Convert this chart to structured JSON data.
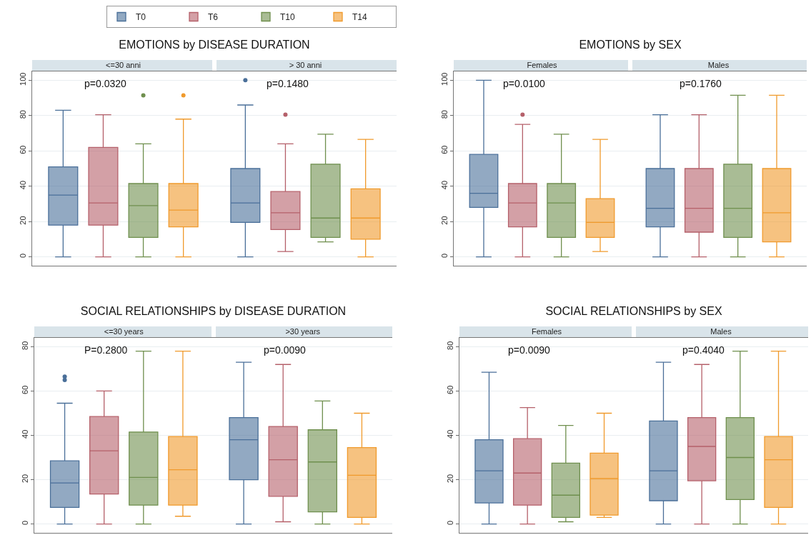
{
  "chart_data": [
    {
      "type": "box",
      "title": "EMOTIONS by DISEASE DURATION",
      "annotations": [
        "p=0.0320",
        "p=0.1480"
      ],
      "categories": [
        "<=30 anni",
        "> 30 anni"
      ],
      "ylim": [
        -5,
        105
      ],
      "yticks": [
        0,
        20,
        40,
        60,
        80,
        100
      ],
      "grid": "y",
      "legend": "top",
      "series": [
        {
          "name": "T0",
          "color": "#4a6f99",
          "boxes": [
            {
              "low": 0,
              "q1": 18,
              "median": 35,
              "q3": 51,
              "high": 83
            },
            {
              "low": 0,
              "q1": 19.5,
              "median": 30.5,
              "q3": 50,
              "high": 86,
              "outliers": [
                100
              ]
            }
          ]
        },
        {
          "name": "T6",
          "color": "#b5606a",
          "boxes": [
            {
              "low": 0,
              "q1": 18,
              "median": 30.5,
              "q3": 62,
              "high": 80.5
            },
            {
              "low": 3,
              "q1": 15.5,
              "median": 25,
              "q3": 37,
              "high": 64,
              "outliers": [
                80.5
              ]
            }
          ]
        },
        {
          "name": "T10",
          "color": "#6f8f4e",
          "boxes": [
            {
              "low": 0,
              "q1": 11,
              "median": 29,
              "q3": 41.5,
              "high": 64,
              "outliers": [
                91.5
              ]
            },
            {
              "low": 8.5,
              "q1": 11,
              "median": 22,
              "q3": 52.5,
              "high": 69.5
            }
          ]
        },
        {
          "name": "T14",
          "color": "#f09a2c",
          "boxes": [
            {
              "low": 0,
              "q1": 17,
              "median": 26.5,
              "q3": 41.5,
              "high": 78,
              "outliers": [
                91.5
              ]
            },
            {
              "low": 0,
              "q1": 10,
              "median": 22,
              "q3": 38.5,
              "high": 66.5
            }
          ]
        }
      ]
    },
    {
      "type": "box",
      "title": "EMOTIONS by SEX",
      "annotations": [
        "p=0.0100",
        "p=0.1760"
      ],
      "categories": [
        "Females",
        "Males"
      ],
      "ylim": [
        -5,
        105
      ],
      "yticks": [
        0,
        20,
        40,
        60,
        80,
        100
      ],
      "grid": "y",
      "series": [
        {
          "color": "#4a6f99",
          "boxes": [
            {
              "low": 0,
              "q1": 28,
              "median": 36,
              "q3": 58,
              "high": 100
            },
            {
              "low": 0,
              "q1": 17,
              "median": 27.5,
              "q3": 50,
              "high": 80.5
            }
          ]
        },
        {
          "color": "#b5606a",
          "boxes": [
            {
              "low": 0,
              "q1": 17,
              "median": 30.5,
              "q3": 41.5,
              "high": 75,
              "outliers": [
                80.5
              ]
            },
            {
              "low": 0,
              "q1": 14,
              "median": 27.5,
              "q3": 50,
              "high": 80.5
            }
          ]
        },
        {
          "color": "#6f8f4e",
          "boxes": [
            {
              "low": 0,
              "q1": 11,
              "median": 30.5,
              "q3": 41.5,
              "high": 69.5
            },
            {
              "low": 0,
              "q1": 11,
              "median": 27.5,
              "q3": 52.5,
              "high": 91.5
            }
          ]
        },
        {
          "color": "#f09a2c",
          "boxes": [
            {
              "low": 3,
              "q1": 11,
              "median": 19.5,
              "q3": 33,
              "high": 66.5
            },
            {
              "low": 0,
              "q1": 8.5,
              "median": 25,
              "q3": 50,
              "high": 91.5
            }
          ]
        }
      ]
    },
    {
      "type": "box",
      "title": "SOCIAL RELATIONSHIPS by DISEASE DURATION",
      "annotations": [
        "P=0.2800",
        "p=0.0090"
      ],
      "categories": [
        "<=30 years",
        ">30 years"
      ],
      "ylim": [
        -4,
        84
      ],
      "yticks": [
        0,
        20,
        40,
        60,
        80
      ],
      "grid": "y",
      "series": [
        {
          "color": "#4a6f99",
          "boxes": [
            {
              "low": 0,
              "q1": 7.5,
              "median": 18.5,
              "q3": 28.5,
              "high": 54.5,
              "outliers": [
                65,
                66.5
              ]
            },
            {
              "low": 0,
              "q1": 20,
              "median": 38,
              "q3": 48,
              "high": 73
            }
          ]
        },
        {
          "color": "#b5606a",
          "boxes": [
            {
              "low": 0,
              "q1": 13.5,
              "median": 33,
              "q3": 48.5,
              "high": 60
            },
            {
              "low": 1,
              "q1": 12.5,
              "median": 29,
              "q3": 44,
              "high": 72
            }
          ]
        },
        {
          "color": "#6f8f4e",
          "boxes": [
            {
              "low": 0,
              "q1": 8.5,
              "median": 21,
              "q3": 41.5,
              "high": 78
            },
            {
              "low": 0,
              "q1": 5.5,
              "median": 28,
              "q3": 42.5,
              "high": 55.5
            }
          ]
        },
        {
          "color": "#f09a2c",
          "boxes": [
            {
              "low": 3.5,
              "q1": 8.5,
              "median": 24.5,
              "q3": 39.5,
              "high": 78
            },
            {
              "low": 0,
              "q1": 3,
              "median": 22,
              "q3": 34.5,
              "high": 50
            }
          ]
        }
      ]
    },
    {
      "type": "box",
      "title": "SOCIAL RELATIONSHIPS by SEX",
      "annotations": [
        "p=0.0090",
        "p=0.4040"
      ],
      "categories": [
        "Females",
        "Males"
      ],
      "ylim": [
        -4,
        84
      ],
      "yticks": [
        0,
        20,
        40,
        60,
        80
      ],
      "grid": "y",
      "series": [
        {
          "color": "#4a6f99",
          "boxes": [
            {
              "low": 0,
              "q1": 9.5,
              "median": 24,
              "q3": 38,
              "high": 68.5
            },
            {
              "low": 0,
              "q1": 10.5,
              "median": 24,
              "q3": 46.5,
              "high": 73
            }
          ]
        },
        {
          "color": "#b5606a",
          "boxes": [
            {
              "low": 0,
              "q1": 8.5,
              "median": 23,
              "q3": 38.5,
              "high": 52.5
            },
            {
              "low": 0,
              "q1": 19.5,
              "median": 35,
              "q3": 48,
              "high": 72
            }
          ]
        },
        {
          "color": "#6f8f4e",
          "boxes": [
            {
              "low": 1,
              "q1": 3,
              "median": 13,
              "q3": 27.5,
              "high": 44.5
            },
            {
              "low": 0,
              "q1": 11,
              "median": 30,
              "q3": 48,
              "high": 78
            }
          ]
        },
        {
          "color": "#f09a2c",
          "boxes": [
            {
              "low": 3,
              "q1": 4,
              "median": 20.5,
              "q3": 32,
              "high": 50
            },
            {
              "low": 0,
              "q1": 7.5,
              "median": 29,
              "q3": 39.5,
              "high": 78
            }
          ]
        }
      ]
    }
  ]
}
